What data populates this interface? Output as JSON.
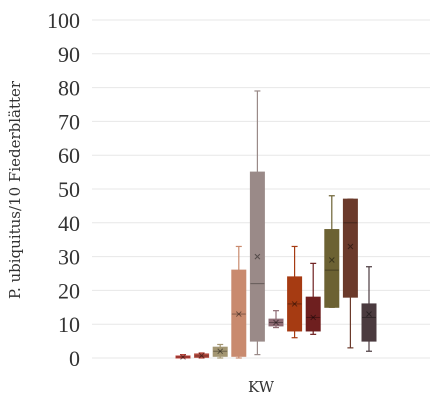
{
  "chart_data": {
    "type": "box",
    "title": "",
    "xlabel": "KW",
    "ylabel": "P. ubiquitus/10 Fiederblätter",
    "ylim": [
      0,
      100
    ],
    "yticks": [
      0,
      10,
      20,
      30,
      40,
      50,
      60,
      70,
      80,
      90,
      100
    ],
    "ytick_labels": [
      "0",
      "10",
      "20",
      "30",
      "40",
      "50",
      "60",
      "70",
      "80",
      "90",
      "100"
    ],
    "grid": true,
    "series": [
      {
        "color": "#c0443c",
        "min": 0,
        "q1": 0,
        "median": 0.3,
        "q3": 0.6,
        "max": 1,
        "mean": 0.3
      },
      {
        "color": "#b44a3e",
        "min": 0,
        "q1": 0.2,
        "median": 0.6,
        "q3": 1.2,
        "max": 1.5,
        "mean": 0.7
      },
      {
        "color": "#a39672",
        "min": 0,
        "q1": 0.5,
        "median": 2,
        "q3": 3.2,
        "max": 4,
        "mean": 2
      },
      {
        "color": "#c98a6e",
        "min": 0,
        "q1": 0.5,
        "median": 13,
        "q3": 26,
        "max": 33,
        "mean": 13
      },
      {
        "color": "#9a8a88",
        "min": 1,
        "q1": 5,
        "median": 22,
        "q3": 55,
        "max": 79,
        "mean": 30
      },
      {
        "color": "#8e6b74",
        "min": 9,
        "q1": 9.5,
        "median": 10.5,
        "q3": 11.5,
        "max": 14,
        "mean": 10.5
      },
      {
        "color": "#a63b12",
        "min": 6,
        "q1": 8,
        "median": 16,
        "q3": 24,
        "max": 33,
        "mean": 16
      },
      {
        "color": "#6e1f1f",
        "min": 7,
        "q1": 8,
        "median": 12,
        "q3": 18,
        "max": 28,
        "mean": 12
      },
      {
        "color": "#6c6233",
        "min": 15,
        "q1": 15,
        "median": 26,
        "q3": 38,
        "max": 48,
        "mean": 29
      },
      {
        "color": "#6b3a2b",
        "min": 3,
        "q1": 18,
        "median": 40,
        "q3": 47,
        "max": 47,
        "mean": 33
      },
      {
        "color": "#4b3b3f",
        "min": 2,
        "q1": 5,
        "median": 12,
        "q3": 16,
        "max": 27,
        "mean": 13
      }
    ]
  }
}
